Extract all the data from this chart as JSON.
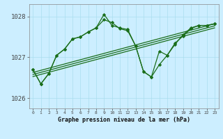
{
  "xlabel": "Graphe pression niveau de la mer (hPa)",
  "xlim": [
    -0.5,
    23.5
  ],
  "ylim": [
    1025.75,
    1028.3
  ],
  "yticks": [
    1026,
    1027,
    1028
  ],
  "xticks": [
    0,
    1,
    2,
    3,
    4,
    5,
    6,
    7,
    8,
    9,
    10,
    11,
    12,
    13,
    14,
    15,
    16,
    17,
    18,
    19,
    20,
    21,
    22,
    23
  ],
  "bg_color": "#cceeff",
  "grid_color": "#aaddee",
  "line_color": "#1a6e1a",
  "y_main1": [
    1026.7,
    1026.35,
    1026.6,
    1027.05,
    1027.2,
    1027.45,
    1027.5,
    1027.62,
    1027.72,
    1028.05,
    1027.78,
    1027.72,
    1027.68,
    1027.28,
    1026.65,
    1026.52,
    1026.82,
    1027.05,
    1027.32,
    1027.55,
    1027.72,
    1027.78,
    1027.78,
    1027.82
  ],
  "y_main2": [
    1026.7,
    1026.35,
    1026.6,
    1027.05,
    1027.2,
    1027.45,
    1027.5,
    1027.62,
    1027.72,
    1027.92,
    1027.85,
    1027.7,
    1027.65,
    1027.28,
    1026.65,
    1026.52,
    1027.15,
    1027.05,
    1027.35,
    1027.52,
    1027.7,
    1027.78,
    1027.78,
    1027.82
  ],
  "trend1_y": [
    1026.58,
    1027.77
  ],
  "trend2_y": [
    1026.63,
    1027.82
  ],
  "trend3_y": [
    1026.53,
    1027.72
  ]
}
